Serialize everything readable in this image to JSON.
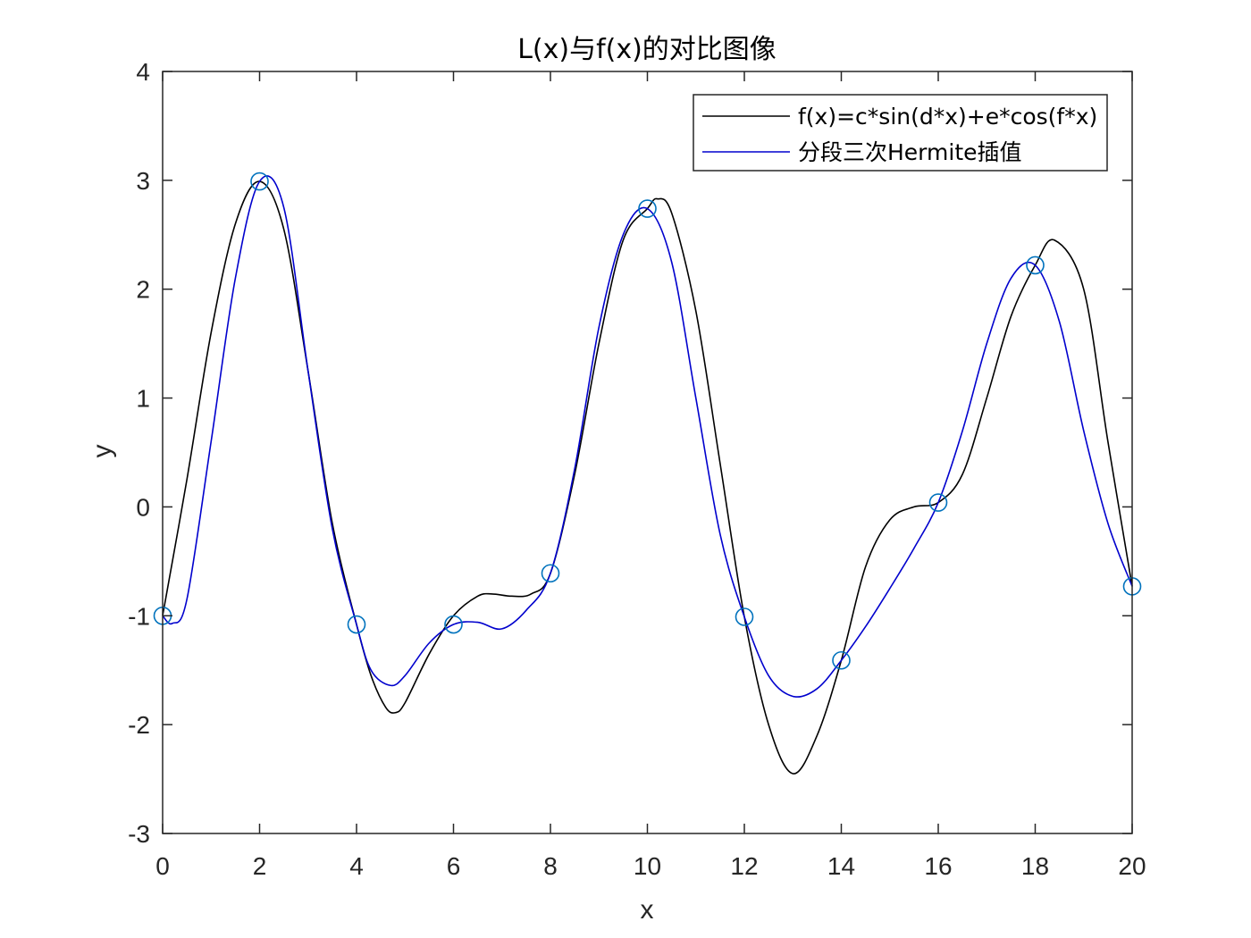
{
  "chart_data": {
    "type": "line",
    "title": "L(x)与f(x)的对比图像",
    "xlabel": "x",
    "ylabel": "y",
    "xlim": [
      0,
      20
    ],
    "ylim": [
      -3,
      4
    ],
    "xticks": [
      0,
      2,
      4,
      6,
      8,
      10,
      12,
      14,
      16,
      18,
      20
    ],
    "yticks": [
      -3,
      -2,
      -1,
      0,
      1,
      2,
      3,
      4
    ],
    "grid": false,
    "legend_position": "top-right",
    "colors": {
      "f": "#000000",
      "hermite": "#0000cd",
      "nodes": "#0072bd",
      "axes": "#262626"
    },
    "nodes": {
      "x": [
        0,
        2,
        4,
        6,
        8,
        10,
        12,
        14,
        16,
        18,
        20
      ],
      "y": [
        -1.0,
        2.99,
        -1.08,
        -1.08,
        -0.61,
        2.74,
        -1.01,
        -1.41,
        0.04,
        2.22,
        -0.73
      ],
      "marker": "circle"
    },
    "series": [
      {
        "name": "f(x)=c*sin(d*x)+e*cos(f*x)",
        "x": [
          0,
          0.5,
          1,
          1.5,
          2,
          2.5,
          3,
          3.5,
          4,
          4.3,
          4.6,
          4.8,
          5,
          5.5,
          6,
          6.5,
          6.8,
          7.2,
          7.6,
          8,
          8.5,
          9,
          9.5,
          10,
          10.2,
          10.5,
          11,
          11.5,
          12,
          12.5,
          13,
          13.5,
          14,
          14.5,
          15,
          15.5,
          16,
          16.5,
          17,
          17.5,
          18,
          18.4,
          19,
          19.5,
          20
        ],
        "y": [
          -1.0,
          0.25,
          1.6,
          2.6,
          2.99,
          2.55,
          1.25,
          -0.15,
          -1.08,
          -1.55,
          -1.84,
          -1.89,
          -1.8,
          -1.35,
          -1.0,
          -0.82,
          -0.8,
          -0.82,
          -0.8,
          -0.61,
          0.3,
          1.5,
          2.45,
          2.74,
          2.83,
          2.7,
          1.8,
          0.4,
          -1.01,
          -2.0,
          -2.45,
          -2.1,
          -1.41,
          -0.55,
          -0.12,
          0.0,
          0.04,
          0.3,
          1.0,
          1.75,
          2.22,
          2.45,
          2.0,
          0.6,
          -0.73
        ],
        "color": "#000000"
      },
      {
        "name": "分段三次Hermite插值",
        "x": [
          0,
          0.2,
          0.5,
          1,
          1.5,
          2,
          2.5,
          3,
          3.5,
          4,
          4.3,
          4.7,
          5,
          5.5,
          6,
          6.5,
          7,
          7.5,
          8,
          8.5,
          9,
          9.5,
          10,
          10.5,
          11,
          11.5,
          12,
          12.5,
          13,
          13.5,
          14,
          14.5,
          15,
          15.5,
          16,
          16.5,
          17,
          17.5,
          18,
          18.5,
          19,
          19.5,
          20
        ],
        "y": [
          -1.0,
          -1.07,
          -0.85,
          0.6,
          2.1,
          2.99,
          2.75,
          1.25,
          -0.2,
          -1.08,
          -1.5,
          -1.64,
          -1.55,
          -1.25,
          -1.08,
          -1.06,
          -1.12,
          -0.95,
          -0.61,
          0.35,
          1.65,
          2.5,
          2.74,
          2.25,
          1.0,
          -0.25,
          -1.01,
          -1.55,
          -1.74,
          -1.67,
          -1.41,
          -1.1,
          -0.75,
          -0.38,
          0.04,
          0.7,
          1.5,
          2.1,
          2.22,
          1.7,
          0.7,
          -0.15,
          -0.73
        ],
        "color": "#0000cd"
      }
    ]
  }
}
